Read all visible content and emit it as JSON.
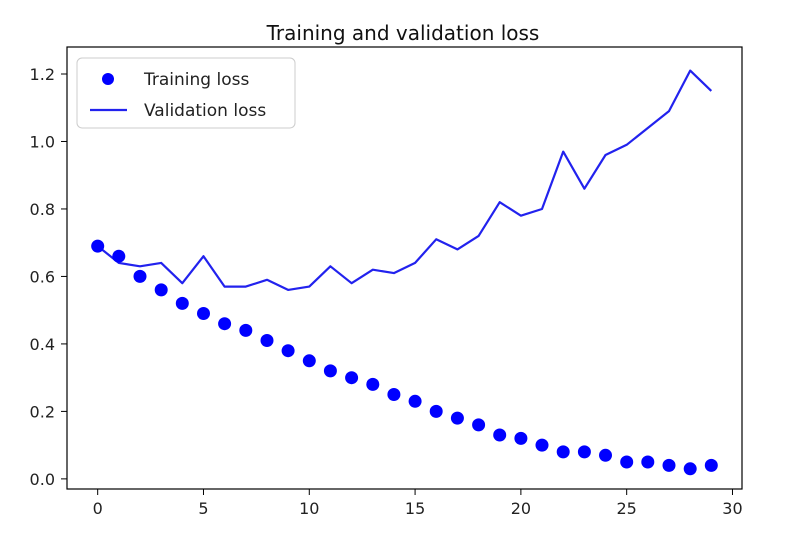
{
  "chart_data": {
    "type": "line",
    "title": "Training and validation loss",
    "xlabel": "",
    "ylabel": "",
    "xlim": [
      -1.45,
      30.45
    ],
    "ylim": [
      -0.03,
      1.28
    ],
    "xticks": [
      0,
      5,
      10,
      15,
      20,
      25,
      30
    ],
    "yticks": [
      0.0,
      0.2,
      0.4,
      0.6,
      0.8,
      1.0,
      1.2
    ],
    "xtick_labels": [
      "0",
      "5",
      "10",
      "15",
      "20",
      "25",
      "30"
    ],
    "ytick_labels": [
      "0.0",
      "0.2",
      "0.4",
      "0.6",
      "0.8",
      "1.0",
      "1.2"
    ],
    "legend_position": "top-left",
    "x": [
      0,
      1,
      2,
      3,
      4,
      5,
      6,
      7,
      8,
      9,
      10,
      11,
      12,
      13,
      14,
      15,
      16,
      17,
      18,
      19,
      20,
      21,
      22,
      23,
      24,
      25,
      26,
      27,
      28,
      29
    ],
    "series": [
      {
        "name": "Training loss",
        "style": "markers",
        "color": "#0000ff",
        "values": [
          0.69,
          0.66,
          0.6,
          0.56,
          0.52,
          0.49,
          0.46,
          0.44,
          0.41,
          0.38,
          0.35,
          0.32,
          0.3,
          0.28,
          0.25,
          0.23,
          0.2,
          0.18,
          0.16,
          0.13,
          0.12,
          0.1,
          0.08,
          0.08,
          0.07,
          0.05,
          0.05,
          0.04,
          0.03,
          0.04
        ]
      },
      {
        "name": "Validation loss",
        "style": "line",
        "color": "#2222ee",
        "values": [
          0.69,
          0.64,
          0.63,
          0.64,
          0.58,
          0.66,
          0.57,
          0.57,
          0.59,
          0.56,
          0.57,
          0.63,
          0.58,
          0.62,
          0.61,
          0.64,
          0.71,
          0.68,
          0.72,
          0.82,
          0.78,
          0.8,
          0.97,
          0.86,
          0.96,
          0.99,
          1.04,
          1.09,
          1.21,
          1.15
        ]
      }
    ]
  }
}
